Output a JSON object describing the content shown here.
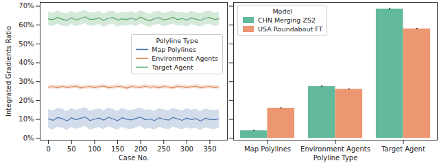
{
  "chart_data": [
    {
      "type": "line",
      "xlabel": "Case No.",
      "ylabel": "Integrated Gradients Ratio",
      "legend_title": "Polyline Type",
      "legend": "right",
      "grid": false,
      "x": [
        0,
        10,
        20,
        30,
        40,
        50,
        60,
        70,
        80,
        90,
        100,
        110,
        120,
        130,
        140,
        150,
        160,
        170,
        180,
        190,
        200,
        210,
        220,
        230,
        240,
        250,
        260,
        270,
        280,
        290,
        300,
        310,
        320,
        330,
        340,
        350,
        360,
        370
      ],
      "series": [
        {
          "name": "Map Polylines",
          "color": "#4c72b0",
          "error": 5,
          "values": [
            10.2,
            9.5,
            11.0,
            10.4,
            9.2,
            10.8,
            9.9,
            10.6,
            11.3,
            9.4,
            10.1,
            10.7,
            9.6,
            11.1,
            10.3,
            9.3,
            10.9,
            10.0,
            9.7,
            10.5,
            11.2,
            9.8,
            10.2,
            9.4,
            10.8,
            10.1,
            9.6,
            11.0,
            10.3,
            9.5,
            10.7,
            9.9,
            10.4,
            9.1,
            10.6,
            10.0,
            9.8,
            10.3
          ]
        },
        {
          "name": "Environment Agents",
          "color": "#dd8452",
          "error": 1,
          "values": [
            27.0,
            27.3,
            26.8,
            27.5,
            26.9,
            27.2,
            27.6,
            26.7,
            27.1,
            27.4,
            26.9,
            27.3,
            27.7,
            26.8,
            27.0,
            27.5,
            27.2,
            26.6,
            27.4,
            27.1,
            26.9,
            27.6,
            27.0,
            27.3,
            26.8,
            27.4,
            27.1,
            26.7,
            27.5,
            27.2,
            26.9,
            27.3,
            27.6,
            26.8,
            27.1,
            27.4,
            26.9,
            27.2
          ]
        },
        {
          "name": "Target Agent",
          "color": "#55a868",
          "error": 3.5,
          "values": [
            63.2,
            62.8,
            64.1,
            63.0,
            62.5,
            63.9,
            62.7,
            63.4,
            64.3,
            62.9,
            63.1,
            63.8,
            62.4,
            63.6,
            64.0,
            62.6,
            63.3,
            62.9,
            63.7,
            62.8,
            64.2,
            63.0,
            62.3,
            63.5,
            63.9,
            62.7,
            63.2,
            64.1,
            62.9,
            63.4,
            62.6,
            63.8,
            63.1,
            62.5,
            63.6,
            64.0,
            62.9,
            63.3
          ]
        }
      ],
      "xlim": [
        -18,
        388
      ],
      "xticks": [
        0,
        50,
        100,
        150,
        200,
        250,
        300,
        350
      ],
      "ylim": [
        -1,
        72
      ],
      "yticks": [
        {
          "value": 0,
          "label": "0%"
        },
        {
          "value": 10,
          "label": "10%"
        },
        {
          "value": 20,
          "label": "20%"
        },
        {
          "value": 30,
          "label": "30%"
        },
        {
          "value": 40,
          "label": "40%"
        },
        {
          "value": 50,
          "label": "50%"
        },
        {
          "value": 60,
          "label": "60%"
        },
        {
          "value": 70,
          "label": "70%"
        }
      ]
    },
    {
      "type": "bar",
      "xlabel": "Polyline Type",
      "legend_title": "Model",
      "legend": "upper left",
      "grid": false,
      "tick_labels": "x",
      "categories": [
        "Map Polylines",
        "Environment Agents",
        "Target Agent"
      ],
      "series": [
        {
          "name": "CHN Merging ZS2",
          "color": "#62b99b",
          "values": [
            4,
            27.5,
            68.5
          ],
          "error": [
            0.3,
            0.3,
            0.3
          ]
        },
        {
          "name": "USA Roundabout FT",
          "color": "#ec9672",
          "values": [
            16,
            26,
            58
          ],
          "error": [
            0.3,
            0.3,
            0.3
          ]
        }
      ],
      "ylim": [
        -1,
        72
      ],
      "yticks": [
        {
          "value": 0,
          "label": "0%"
        },
        {
          "value": 10,
          "label": "10%"
        },
        {
          "value": 20,
          "label": "20%"
        },
        {
          "value": 30,
          "label": "30%"
        },
        {
          "value": 40,
          "label": "40%"
        },
        {
          "value": 50,
          "label": "50%"
        },
        {
          "value": 60,
          "label": "60%"
        },
        {
          "value": 70,
          "label": "70%"
        }
      ]
    }
  ]
}
